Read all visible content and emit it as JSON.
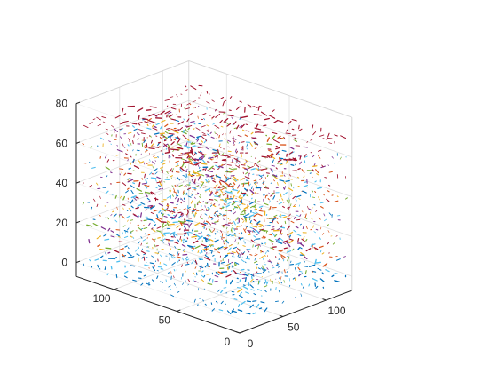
{
  "chart_data": {
    "type": "quiver3",
    "title": "",
    "xlabel": "",
    "ylabel": "",
    "zlabel": "",
    "xlim": [
      0,
      130
    ],
    "ylim": [
      0,
      130
    ],
    "zlim": [
      -7,
      80
    ],
    "x_ticks": [
      0,
      50,
      100
    ],
    "y_ticks": [
      0,
      50,
      100
    ],
    "z_ticks": [
      0,
      20,
      40,
      60,
      80
    ],
    "x_tick_labels": [
      "0",
      "50",
      "100"
    ],
    "y_tick_labels": [
      "0",
      "50",
      "100"
    ],
    "z_tick_labels": [
      "0",
      "20",
      "40",
      "60",
      "80"
    ],
    "grid": true,
    "box": false,
    "colormap": [
      "#0072bd",
      "#d95319",
      "#edb120",
      "#7e2f8e",
      "#77ac30",
      "#4dbeee",
      "#a2142f"
    ],
    "layers_z": [
      0,
      10,
      20,
      30,
      40,
      50,
      60,
      70
    ]
  }
}
